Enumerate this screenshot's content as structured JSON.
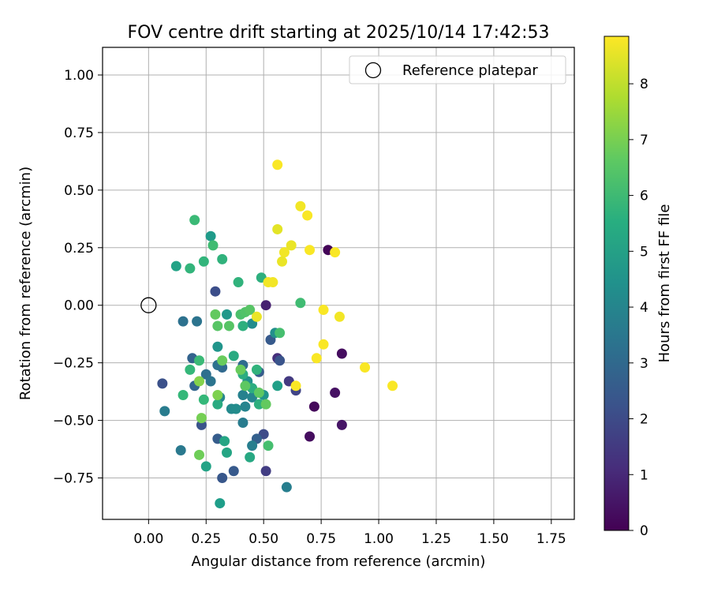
{
  "chart_data": {
    "type": "scatter",
    "title": "FOV centre drift starting at 2025/10/14 17:42:53",
    "xlabel": "Angular distance from reference (arcmin)",
    "ylabel": "Rotation from reference (arcmin)",
    "xlim": [
      -0.2,
      1.85
    ],
    "ylim": [
      -0.93,
      1.12
    ],
    "xticks": [
      0.0,
      0.25,
      0.5,
      0.75,
      1.0,
      1.25,
      1.5,
      1.75
    ],
    "xtick_labels": [
      "0.00",
      "0.25",
      "0.50",
      "0.75",
      "1.00",
      "1.25",
      "1.50",
      "1.75"
    ],
    "yticks": [
      -0.75,
      -0.5,
      -0.25,
      0.0,
      0.25,
      0.5,
      0.75,
      1.0
    ],
    "ytick_labels": [
      "−0.75",
      "−0.50",
      "−0.25",
      "0.00",
      "0.25",
      "0.50",
      "0.75",
      "1.00"
    ],
    "grid": true,
    "legend": {
      "placement": "top-right",
      "entries": [
        "Reference platepar"
      ]
    },
    "reference_point": {
      "x": 0.0,
      "y": 0.0,
      "label": "Reference platepar"
    },
    "colorbar": {
      "label": "Hours from first FF file",
      "colormap": "viridis",
      "range": [
        0,
        8.85
      ],
      "ticks": [
        0,
        1,
        2,
        3,
        4,
        5,
        6,
        7,
        8
      ],
      "tick_labels": [
        "0",
        "1",
        "2",
        "3",
        "4",
        "5",
        "6",
        "7",
        "8"
      ]
    },
    "points": [
      {
        "x": 0.78,
        "y": 0.24,
        "hours": 0.1
      },
      {
        "x": 0.84,
        "y": -0.21,
        "hours": 0.3
      },
      {
        "x": 0.72,
        "y": -0.44,
        "hours": 0.2
      },
      {
        "x": 0.7,
        "y": -0.57,
        "hours": 0.3
      },
      {
        "x": 0.81,
        "y": -0.38,
        "hours": 0.4
      },
      {
        "x": 0.84,
        "y": -0.52,
        "hours": 0.5
      },
      {
        "x": 0.51,
        "y": 0.0,
        "hours": 0.8
      },
      {
        "x": 0.56,
        "y": -0.23,
        "hours": 1.2
      },
      {
        "x": 0.61,
        "y": -0.33,
        "hours": 1.5
      },
      {
        "x": 0.64,
        "y": -0.37,
        "hours": 1.8
      },
      {
        "x": 0.51,
        "y": -0.72,
        "hours": 1.6
      },
      {
        "x": 0.5,
        "y": -0.56,
        "hours": 2.0
      },
      {
        "x": 0.29,
        "y": 0.06,
        "hours": 2.1
      },
      {
        "x": 0.06,
        "y": -0.34,
        "hours": 2.2
      },
      {
        "x": 0.23,
        "y": -0.52,
        "hours": 2.3
      },
      {
        "x": 0.32,
        "y": -0.75,
        "hours": 2.4
      },
      {
        "x": 0.37,
        "y": -0.72,
        "hours": 2.5
      },
      {
        "x": 0.53,
        "y": -0.15,
        "hours": 2.5
      },
      {
        "x": 0.57,
        "y": -0.24,
        "hours": 2.3
      },
      {
        "x": 0.48,
        "y": -0.29,
        "hours": 2.6
      },
      {
        "x": 0.3,
        "y": -0.58,
        "hours": 2.6
      },
      {
        "x": 0.47,
        "y": -0.58,
        "hours": 2.7
      },
      {
        "x": 0.19,
        "y": -0.23,
        "hours": 2.8
      },
      {
        "x": 0.2,
        "y": -0.35,
        "hours": 2.9
      },
      {
        "x": 0.32,
        "y": -0.27,
        "hours": 3.0
      },
      {
        "x": 0.41,
        "y": -0.26,
        "hours": 3.1
      },
      {
        "x": 0.25,
        "y": -0.3,
        "hours": 3.2
      },
      {
        "x": 0.3,
        "y": -0.26,
        "hours": 3.3
      },
      {
        "x": 0.27,
        "y": -0.33,
        "hours": 3.4
      },
      {
        "x": 0.15,
        "y": -0.07,
        "hours": 3.3
      },
      {
        "x": 0.21,
        "y": -0.07,
        "hours": 3.4
      },
      {
        "x": 0.14,
        "y": -0.63,
        "hours": 3.6
      },
      {
        "x": 0.07,
        "y": -0.46,
        "hours": 3.7
      },
      {
        "x": 0.41,
        "y": -0.51,
        "hours": 3.7
      },
      {
        "x": 0.45,
        "y": -0.61,
        "hours": 3.8
      },
      {
        "x": 0.6,
        "y": -0.79,
        "hours": 3.8
      },
      {
        "x": 0.41,
        "y": -0.39,
        "hours": 3.9
      },
      {
        "x": 0.42,
        "y": -0.44,
        "hours": 4.0
      },
      {
        "x": 0.45,
        "y": -0.4,
        "hours": 4.0
      },
      {
        "x": 0.31,
        "y": -0.4,
        "hours": 4.1
      },
      {
        "x": 0.36,
        "y": -0.45,
        "hours": 4.2
      },
      {
        "x": 0.38,
        "y": -0.45,
        "hours": 4.3
      },
      {
        "x": 0.45,
        "y": -0.08,
        "hours": 4.3
      },
      {
        "x": 0.55,
        "y": -0.12,
        "hours": 4.4
      },
      {
        "x": 0.43,
        "y": -0.33,
        "hours": 4.5
      },
      {
        "x": 0.5,
        "y": -0.39,
        "hours": 4.6
      },
      {
        "x": 0.3,
        "y": -0.18,
        "hours": 4.6
      },
      {
        "x": 0.34,
        "y": -0.04,
        "hours": 4.7
      },
      {
        "x": 0.27,
        "y": 0.3,
        "hours": 4.8
      },
      {
        "x": 0.31,
        "y": -0.86,
        "hours": 4.9
      },
      {
        "x": 0.56,
        "y": -0.35,
        "hours": 5.0
      },
      {
        "x": 0.12,
        "y": 0.17,
        "hours": 5.1
      },
      {
        "x": 0.25,
        "y": -0.7,
        "hours": 5.1
      },
      {
        "x": 0.33,
        "y": -0.59,
        "hours": 5.2
      },
      {
        "x": 0.34,
        "y": -0.64,
        "hours": 5.2
      },
      {
        "x": 0.44,
        "y": -0.66,
        "hours": 5.3
      },
      {
        "x": 0.3,
        "y": -0.43,
        "hours": 5.4
      },
      {
        "x": 0.37,
        "y": -0.22,
        "hours": 5.4
      },
      {
        "x": 0.41,
        "y": -0.3,
        "hours": 5.5
      },
      {
        "x": 0.45,
        "y": -0.36,
        "hours": 5.5
      },
      {
        "x": 0.48,
        "y": -0.43,
        "hours": 5.6
      },
      {
        "x": 0.47,
        "y": -0.28,
        "hours": 5.7
      },
      {
        "x": 0.41,
        "y": -0.09,
        "hours": 5.6
      },
      {
        "x": 0.39,
        "y": 0.1,
        "hours": 5.7
      },
      {
        "x": 0.49,
        "y": 0.12,
        "hours": 5.6
      },
      {
        "x": 0.32,
        "y": 0.2,
        "hours": 5.7
      },
      {
        "x": 0.24,
        "y": 0.19,
        "hours": 5.8
      },
      {
        "x": 0.18,
        "y": 0.16,
        "hours": 5.8
      },
      {
        "x": 0.18,
        "y": -0.28,
        "hours": 5.9
      },
      {
        "x": 0.15,
        "y": -0.39,
        "hours": 5.9
      },
      {
        "x": 0.24,
        "y": -0.41,
        "hours": 5.9
      },
      {
        "x": 0.22,
        "y": -0.24,
        "hours": 6.0
      },
      {
        "x": 0.2,
        "y": 0.37,
        "hours": 6.0
      },
      {
        "x": 0.28,
        "y": 0.26,
        "hours": 6.1
      },
      {
        "x": 0.66,
        "y": 0.01,
        "hours": 6.1
      },
      {
        "x": 0.52,
        "y": -0.61,
        "hours": 6.2
      },
      {
        "x": 0.57,
        "y": -0.12,
        "hours": 6.2
      },
      {
        "x": 0.4,
        "y": -0.04,
        "hours": 6.3
      },
      {
        "x": 0.42,
        "y": -0.03,
        "hours": 6.4
      },
      {
        "x": 0.44,
        "y": -0.02,
        "hours": 6.5
      },
      {
        "x": 0.3,
        "y": -0.09,
        "hours": 6.5
      },
      {
        "x": 0.35,
        "y": -0.09,
        "hours": 6.5
      },
      {
        "x": 0.42,
        "y": -0.35,
        "hours": 6.6
      },
      {
        "x": 0.48,
        "y": -0.38,
        "hours": 6.6
      },
      {
        "x": 0.51,
        "y": -0.43,
        "hours": 6.7
      },
      {
        "x": 0.29,
        "y": -0.04,
        "hours": 6.7
      },
      {
        "x": 0.32,
        "y": -0.24,
        "hours": 6.8
      },
      {
        "x": 0.4,
        "y": -0.28,
        "hours": 6.8
      },
      {
        "x": 0.22,
        "y": -0.65,
        "hours": 6.9
      },
      {
        "x": 0.23,
        "y": -0.49,
        "hours": 7.0
      },
      {
        "x": 0.3,
        "y": -0.39,
        "hours": 7.1
      },
      {
        "x": 0.22,
        "y": -0.33,
        "hours": 7.2
      },
      {
        "x": 0.47,
        "y": -0.05,
        "hours": 8.6
      },
      {
        "x": 0.56,
        "y": 0.61,
        "hours": 8.8
      },
      {
        "x": 0.56,
        "y": 0.33,
        "hours": 8.5
      },
      {
        "x": 0.59,
        "y": 0.23,
        "hours": 8.7
      },
      {
        "x": 0.62,
        "y": 0.26,
        "hours": 8.6
      },
      {
        "x": 0.66,
        "y": 0.43,
        "hours": 8.7
      },
      {
        "x": 0.69,
        "y": 0.39,
        "hours": 8.8
      },
      {
        "x": 0.7,
        "y": 0.24,
        "hours": 8.8
      },
      {
        "x": 0.81,
        "y": 0.23,
        "hours": 8.8
      },
      {
        "x": 0.52,
        "y": 0.1,
        "hours": 8.7
      },
      {
        "x": 0.54,
        "y": 0.1,
        "hours": 8.7
      },
      {
        "x": 0.58,
        "y": 0.19,
        "hours": 8.6
      },
      {
        "x": 0.76,
        "y": -0.02,
        "hours": 8.8
      },
      {
        "x": 0.83,
        "y": -0.05,
        "hours": 8.7
      },
      {
        "x": 0.76,
        "y": -0.17,
        "hours": 8.8
      },
      {
        "x": 0.73,
        "y": -0.23,
        "hours": 8.8
      },
      {
        "x": 0.64,
        "y": -0.35,
        "hours": 8.8
      },
      {
        "x": 0.94,
        "y": -0.27,
        "hours": 8.8
      },
      {
        "x": 1.06,
        "y": -0.35,
        "hours": 8.8
      }
    ]
  }
}
